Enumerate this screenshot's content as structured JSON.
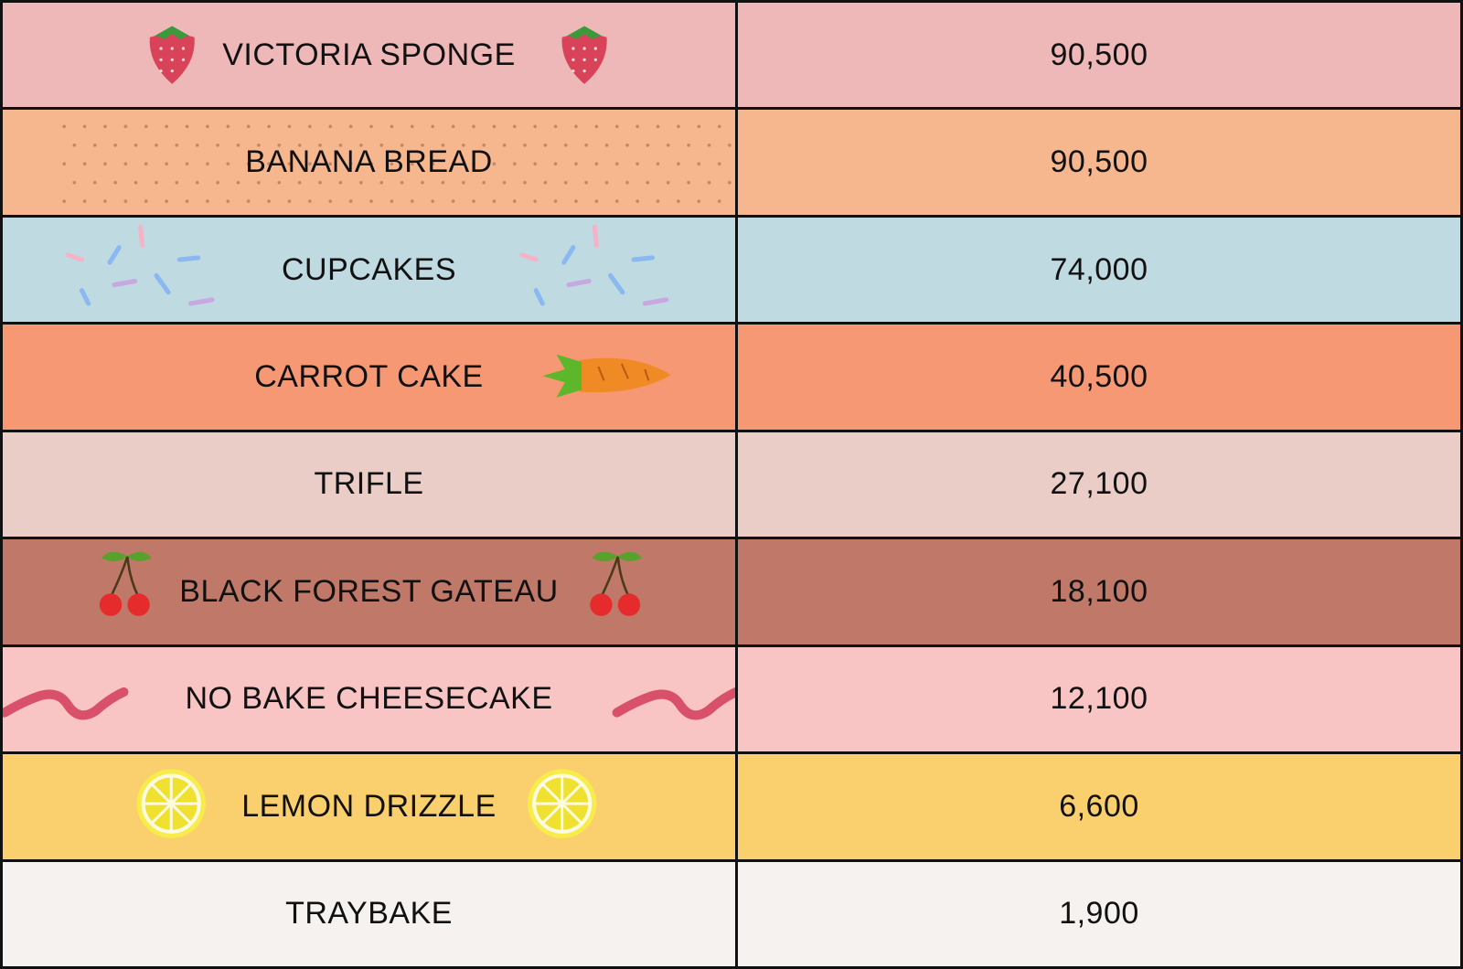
{
  "table": {
    "rows": [
      [
        "VICTORIA SPONGE",
        "90,500"
      ],
      [
        "BANANA BREAD",
        "90,500"
      ],
      [
        "CUPCAKES",
        "74,000"
      ],
      [
        "CARROT CAKE",
        "40,500"
      ],
      [
        "TRIFLE",
        "27,100"
      ],
      [
        "BLACK FOREST GATEAU",
        "18,100"
      ],
      [
        "NO BAKE CHEESECAKE",
        "12,100"
      ],
      [
        "LEMON DRIZZLE",
        "6,600"
      ],
      [
        "TRAYBAKE",
        "1,900"
      ]
    ]
  }
}
